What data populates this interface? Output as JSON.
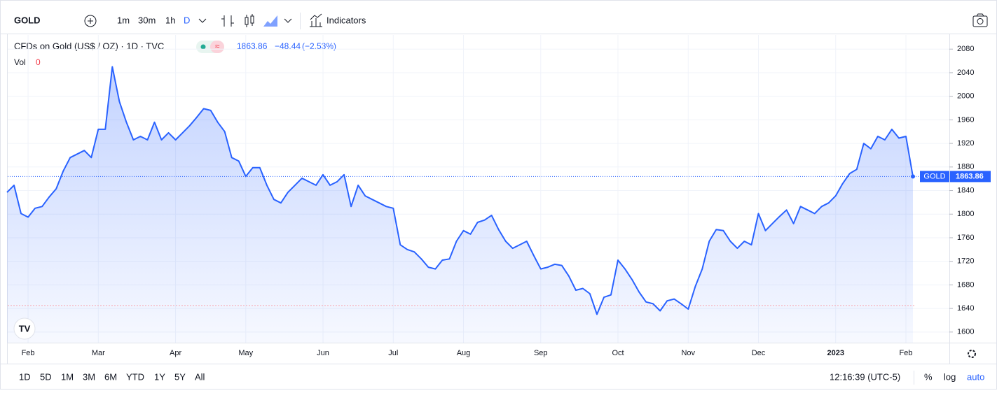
{
  "toolbar": {
    "symbol": "GOLD",
    "intervals": [
      "1m",
      "30m",
      "1h",
      "D"
    ],
    "indicators": "Indicators"
  },
  "legend": {
    "title": "CFDs on Gold (US$ / OZ) · 1D · TVC",
    "change": "−48.44",
    "change_percent": "(−2.53%)",
    "volume_label": "Vol",
    "volume": "0"
  },
  "chart_data": {
    "type": "line",
    "categories": [
      null,
      null,
      null,
      "Feb",
      null,
      null,
      null,
      null,
      null,
      null,
      null,
      null,
      null,
      "Mar",
      null,
      null,
      null,
      null,
      null,
      null,
      null,
      null,
      null,
      null,
      "Apr",
      null,
      null,
      null,
      null,
      null,
      null,
      null,
      null,
      null,
      "May",
      null,
      null,
      null,
      null,
      null,
      null,
      null,
      null,
      null,
      null,
      "Jun",
      null,
      null,
      null,
      null,
      null,
      null,
      null,
      null,
      null,
      "Jul",
      null,
      null,
      null,
      null,
      null,
      null,
      null,
      null,
      null,
      "Aug",
      null,
      null,
      null,
      null,
      null,
      null,
      null,
      null,
      null,
      null,
      "Sep",
      null,
      null,
      null,
      null,
      null,
      null,
      null,
      null,
      null,
      null,
      "Oct",
      null,
      null,
      null,
      null,
      null,
      null,
      null,
      null,
      null,
      "Nov",
      null,
      null,
      null,
      null,
      null,
      null,
      null,
      null,
      null,
      "Dec",
      null,
      null,
      null,
      null,
      null,
      null,
      null,
      null,
      null,
      null,
      "2023",
      null,
      null,
      null,
      null,
      null,
      null,
      null,
      null,
      null,
      "Feb",
      null
    ],
    "series": [
      {
        "name": "GOLD",
        "color": "#2962ff",
        "values": [
          1837,
          1849,
          1801,
          1795,
          1810,
          1813,
          1829,
          1843,
          1873,
          1896,
          1902,
          1908,
          1896,
          1944,
          1944,
          2050,
          1991,
          1956,
          1926,
          1932,
          1926,
          1956,
          1926,
          1938,
          1926,
          1938,
          1950,
          1964,
          1979,
          1976,
          1956,
          1940,
          1896,
          1890,
          1864,
          1879,
          1879,
          1849,
          1825,
          1819,
          1837,
          1849,
          1861,
          1855,
          1849,
          1867,
          1849,
          1855,
          1867,
          1813,
          1849,
          1831,
          1825,
          1819,
          1813,
          1810,
          1748,
          1740,
          1736,
          1724,
          1710,
          1707,
          1722,
          1724,
          1754,
          1772,
          1766,
          1786,
          1790,
          1798,
          1774,
          1754,
          1742,
          1748,
          1754,
          1730,
          1707,
          1710,
          1715,
          1713,
          1695,
          1671,
          1674,
          1665,
          1630,
          1659,
          1663,
          1722,
          1707,
          1689,
          1668,
          1651,
          1648,
          1636,
          1653,
          1656,
          1648,
          1639,
          1677,
          1707,
          1754,
          1774,
          1772,
          1754,
          1742,
          1754,
          1748,
          1801,
          1772,
          1784,
          1796,
          1807,
          1784,
          1813,
          1807,
          1801,
          1813,
          1819,
          1831,
          1852,
          1869,
          1876,
          1920,
          1911,
          1932,
          1926,
          1944,
          1929,
          1932,
          1863.86
        ]
      }
    ],
    "ylim": [
      1582,
      2104
    ],
    "yticks": [
      1600,
      1640,
      1680,
      1720,
      1760,
      1800,
      1840,
      1880,
      1920,
      1960,
      2000,
      2040,
      2080
    ],
    "dashed_line": 1645,
    "grid": true
  },
  "footer": {
    "ranges": [
      "1D",
      "5D",
      "1M",
      "3M",
      "6M",
      "YTD",
      "1Y",
      "5Y",
      "All"
    ],
    "time": "12:16:39 (UTC-5)",
    "options": [
      "%",
      "log",
      "auto"
    ]
  }
}
